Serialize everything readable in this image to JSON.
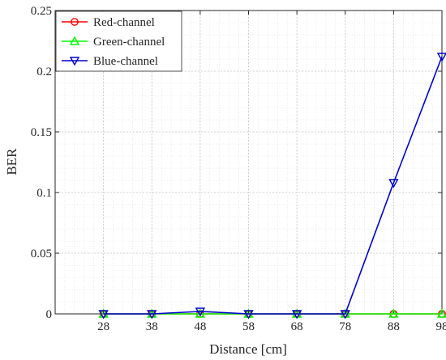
{
  "chart_data": {
    "type": "line",
    "xlabel": "Distance [cm]",
    "ylabel": "BER",
    "x": [
      28,
      38,
      48,
      58,
      68,
      78,
      88,
      98
    ],
    "xlim": [
      18,
      98
    ],
    "ylim": [
      0,
      0.25
    ],
    "x_tick_labels": [
      "28",
      "38",
      "48",
      "58",
      "68",
      "78",
      "88",
      "98"
    ],
    "y_ticks": [
      0,
      0.05,
      0.1,
      0.15,
      0.2,
      0.25
    ],
    "y_tick_labels": [
      "0",
      "0.05",
      "0.1",
      "0.15",
      "0.2",
      "0.25"
    ],
    "grid": true,
    "minor_grid": true,
    "legend_position": "top-left",
    "series": [
      {
        "name": "Red-channel",
        "color": "#ff0000",
        "marker": "circle",
        "values": [
          0,
          0,
          0,
          0,
          0,
          0,
          0,
          0
        ]
      },
      {
        "name": "Green-channel",
        "color": "#00ff00",
        "marker": "triangle-up",
        "values": [
          0,
          0,
          0,
          0,
          0,
          0,
          0,
          0
        ]
      },
      {
        "name": "Blue-channel",
        "color": "#0000cc",
        "marker": "triangle-down",
        "values": [
          0,
          0,
          0.002,
          0,
          0,
          0,
          0.108,
          0.212
        ]
      }
    ]
  }
}
